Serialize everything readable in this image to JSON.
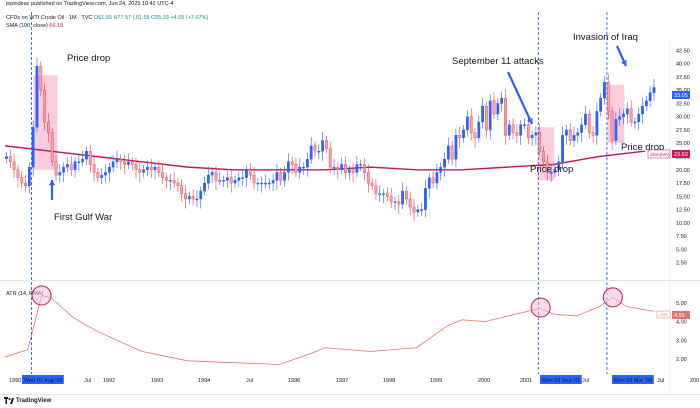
{
  "header": {
    "text": "jepindeac published on TradingView.com, Jun 24, 2025 10:42 UTC-4"
  },
  "legend": {
    "symbol": "CFDs on WTI Crude Oil · 1M · TVC",
    "ohlc": "O61.55 H77.57 L61.55 C65.33 +4.65 (+7.67%)",
    "sma_label": "SMA (100, close)",
    "sma_value": "66.18"
  },
  "atr_legend": "ATR (14, RMA)",
  "footer": {
    "brand": "TradingView"
  },
  "annotations": {
    "price_drop_1": "Price drop",
    "first_gulf_war": "First Gulf War",
    "sept11": "September 11 attacks",
    "invasion_iraq": "Invasion of Iraq",
    "price_drop_2": "Price drop",
    "price_drop_3": "Price drop"
  },
  "badges": {
    "price_last": "33.05",
    "sma_tag": "SMA(MA)",
    "sma_value": "23.53",
    "atr_tag": "ATR",
    "atr_value": "4.55"
  },
  "colors": {
    "up": "#2962ff",
    "down": "#f23645",
    "down_fill": "#f7a1a8",
    "sma": "#c2185b",
    "atr": "#e57373",
    "highlight": "#f8bbd0",
    "vline": "#2962ff",
    "circle": "#c2185b"
  },
  "chart_data": [
    {
      "type": "candlestick",
      "title": "",
      "price_axis_ticks": [
        "42.50",
        "40.00",
        "37.50",
        "35.00",
        "32.50",
        "30.00",
        "27.50",
        "25.00",
        "22.50",
        "20.00",
        "17.50",
        "15.00",
        "12.50",
        "10.00",
        "7.50",
        "5.00",
        "2.50"
      ],
      "ylim": [
        1.5,
        43.5
      ],
      "x_period": [
        "1990-01",
        "2005-06"
      ],
      "time_axis_labels": [
        "1990",
        "Wed 01 Aug '90",
        "Jul",
        "1992",
        "1993",
        "1994",
        "Jul",
        "1996",
        "1997",
        "1998",
        "1999",
        "2000",
        "2001",
        "Mon 03 Sep '01",
        "Jul",
        "Mon 03 Mar '03",
        "Jul",
        "200"
      ],
      "candles_by_year": [
        {
          "year": 1990,
          "closes": [
            22.5,
            21.5,
            20.0,
            18.5,
            17.5,
            17.0,
            20.5,
            28.0,
            39.5,
            35.0,
            29.0,
            27.0
          ]
        },
        {
          "year": 1991,
          "closes": [
            21.5,
            19.0,
            19.5,
            20.5,
            21.0,
            20.0,
            21.5,
            21.5,
            22.0,
            23.5,
            21.0,
            19.5
          ]
        },
        {
          "year": 1992,
          "closes": [
            18.5,
            19.0,
            19.5,
            20.5,
            21.5,
            22.0,
            21.5,
            21.0,
            21.5,
            21.0,
            20.0,
            19.5
          ]
        },
        {
          "year": 1993,
          "closes": [
            20.0,
            20.5,
            20.0,
            20.5,
            19.5,
            18.5,
            18.0,
            18.0,
            17.5,
            17.0,
            15.5,
            14.5
          ]
        },
        {
          "year": 1994,
          "closes": [
            15.0,
            14.5,
            14.5,
            16.0,
            17.5,
            19.0,
            19.5,
            18.0,
            18.0,
            18.0,
            18.5,
            17.5
          ]
        },
        {
          "year": 1995,
          "closes": [
            18.0,
            18.5,
            18.5,
            20.0,
            19.0,
            17.5,
            17.5,
            17.5,
            17.5,
            17.5,
            18.0,
            19.5
          ]
        },
        {
          "year": 1996,
          "closes": [
            18.0,
            19.5,
            21.5,
            21.0,
            19.5,
            20.5,
            20.5,
            22.0,
            24.5,
            23.5,
            23.5,
            25.5
          ]
        },
        {
          "year": 1997,
          "closes": [
            24.0,
            20.5,
            20.5,
            20.0,
            21.0,
            19.5,
            20.0,
            19.5,
            21.0,
            21.0,
            19.5,
            17.5
          ]
        },
        {
          "year": 1998,
          "closes": [
            17.0,
            15.5,
            15.5,
            15.5,
            15.0,
            14.0,
            14.0,
            13.5,
            16.0,
            14.5,
            13.0,
            12.0
          ]
        },
        {
          "year": 1999,
          "closes": [
            12.5,
            12.5,
            16.5,
            18.5,
            17.5,
            19.5,
            20.5,
            22.0,
            24.5,
            22.0,
            26.5,
            26.0
          ]
        },
        {
          "year": 2000,
          "closes": [
            27.5,
            30.0,
            27.0,
            26.0,
            29.0,
            32.0,
            27.5,
            33.0,
            30.5,
            32.5,
            33.5,
            26.5
          ]
        },
        {
          "year": 2001,
          "closes": [
            28.5,
            27.0,
            26.5,
            28.5,
            28.5,
            26.0,
            26.5,
            27.0,
            23.5,
            21.5,
            19.5,
            19.5
          ]
        },
        {
          "year": 2002,
          "closes": [
            20.0,
            21.5,
            26.5,
            27.5,
            25.5,
            26.5,
            27.0,
            28.5,
            30.5,
            27.0,
            26.5,
            31.0
          ]
        },
        {
          "year": 2003,
          "closes": [
            33.5,
            36.5,
            31.0,
            25.5,
            29.5,
            30.0,
            30.5,
            31.5,
            29.0,
            29.0,
            30.5,
            32.0
          ]
        },
        {
          "year": 2004,
          "closes": [
            33.0,
            34.5,
            35.5
          ]
        }
      ],
      "sma": {
        "name": "SMA (100, close)",
        "values_by_year": [
          {
            "year": 1990,
            "value": 24.5
          },
          {
            "year": 1991,
            "value": 23.5
          },
          {
            "year": 1992,
            "value": 22.5
          },
          {
            "year": 1993,
            "value": 21.5
          },
          {
            "year": 1994,
            "value": 20.5
          },
          {
            "year": 1995,
            "value": 20.0
          },
          {
            "year": 1996,
            "value": 20.0
          },
          {
            "year": 1997,
            "value": 20.0
          },
          {
            "year": 1998,
            "value": 20.5
          },
          {
            "year": 1999,
            "value": 20.0
          },
          {
            "year": 2000,
            "value": 20.0
          },
          {
            "year": 2001,
            "value": 20.5
          },
          {
            "year": 2002,
            "value": 21.0
          },
          {
            "year": 2003,
            "value": 22.5
          },
          {
            "year": 2004,
            "value": 23.5
          }
        ]
      }
    },
    {
      "type": "line",
      "title": "ATR (14, RMA)",
      "y_axis_ticks": [
        "5.00",
        "4.00",
        "3.00",
        "2.00"
      ],
      "ylim": [
        1.3,
        5.8
      ],
      "series": [
        {
          "name": "ATR (14, RMA)",
          "values_by_year": [
            {
              "year": 1990.0,
              "value": 2.1
            },
            {
              "year": 1990.5,
              "value": 2.5
            },
            {
              "year": 1990.8,
              "value": 5.4
            },
            {
              "year": 1991.0,
              "value": 5.3
            },
            {
              "year": 1991.5,
              "value": 4.2
            },
            {
              "year": 1992.0,
              "value": 3.5
            },
            {
              "year": 1993.0,
              "value": 2.4
            },
            {
              "year": 1994.0,
              "value": 1.9
            },
            {
              "year": 1995.0,
              "value": 1.8
            },
            {
              "year": 1996.0,
              "value": 1.7
            },
            {
              "year": 1996.7,
              "value": 2.3
            },
            {
              "year": 1997.0,
              "value": 2.6
            },
            {
              "year": 1998.0,
              "value": 2.4
            },
            {
              "year": 1999.0,
              "value": 2.6
            },
            {
              "year": 1999.7,
              "value": 3.8
            },
            {
              "year": 2000.0,
              "value": 4.1
            },
            {
              "year": 2000.5,
              "value": 4.0
            },
            {
              "year": 2001.0,
              "value": 4.3
            },
            {
              "year": 2001.7,
              "value": 4.7
            },
            {
              "year": 2002.0,
              "value": 4.4
            },
            {
              "year": 2002.5,
              "value": 4.3
            },
            {
              "year": 2003.0,
              "value": 4.8
            },
            {
              "year": 2003.3,
              "value": 5.3
            },
            {
              "year": 2003.6,
              "value": 4.8
            },
            {
              "year": 2004.2,
              "value": 4.55
            }
          ]
        }
      ]
    }
  ]
}
